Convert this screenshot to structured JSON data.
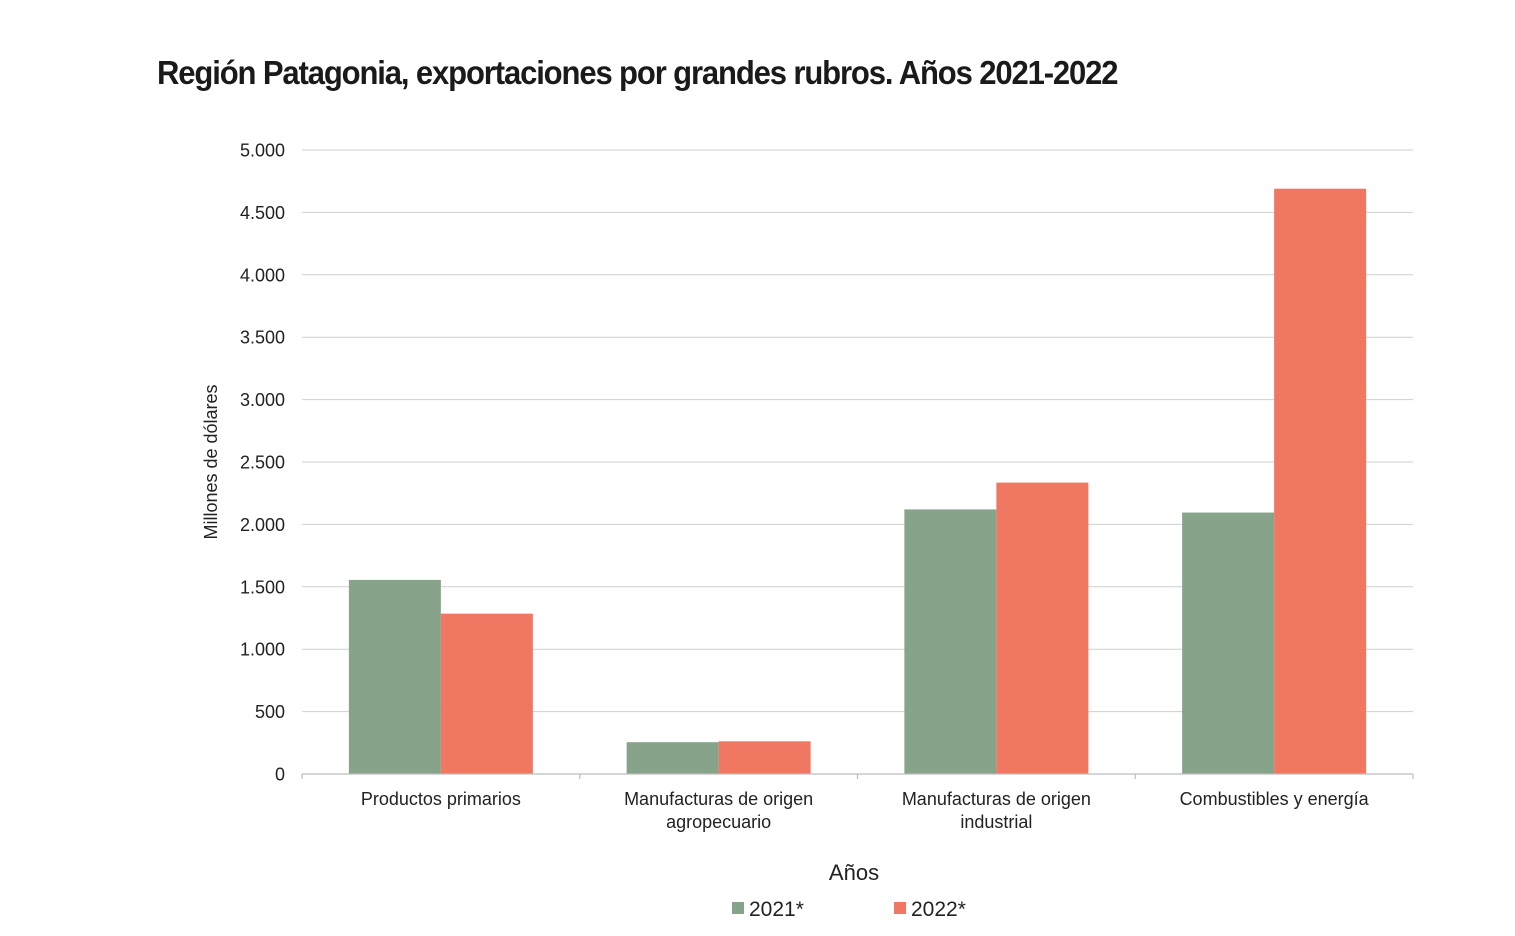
{
  "chart_data": {
    "type": "bar",
    "title": "Región Patagonia, exportaciones por grandes rubros. Años 2021-2022",
    "xlabel": "Años",
    "ylabel": "Millones de dólares",
    "ylim": [
      0,
      5000
    ],
    "yticks": [
      {
        "value": 0,
        "label": "0"
      },
      {
        "value": 500,
        "label": "500"
      },
      {
        "value": 1000,
        "label": "1.000"
      },
      {
        "value": 1500,
        "label": "1.500"
      },
      {
        "value": 2000,
        "label": "2.000"
      },
      {
        "value": 2500,
        "label": "2.500"
      },
      {
        "value": 3000,
        "label": "3.000"
      },
      {
        "value": 3500,
        "label": "3.500"
      },
      {
        "value": 4000,
        "label": "4.000"
      },
      {
        "value": 4500,
        "label": "4.500"
      },
      {
        "value": 5000,
        "label": "5.000"
      }
    ],
    "categories": [
      [
        "Productos primarios"
      ],
      [
        "Manufacturas de origen",
        "agropecuario"
      ],
      [
        "Manufacturas de origen",
        "industrial"
      ],
      [
        "Combustibles y energía"
      ]
    ],
    "series": [
      {
        "name": "2021*",
        "color": "#87a48a",
        "values": [
          1555,
          255,
          2120,
          2095
        ]
      },
      {
        "name": "2022*",
        "color": "#f07863",
        "values": [
          1285,
          262,
          2335,
          4690
        ]
      }
    ],
    "grid": true,
    "legend_position": "bottom-center"
  }
}
